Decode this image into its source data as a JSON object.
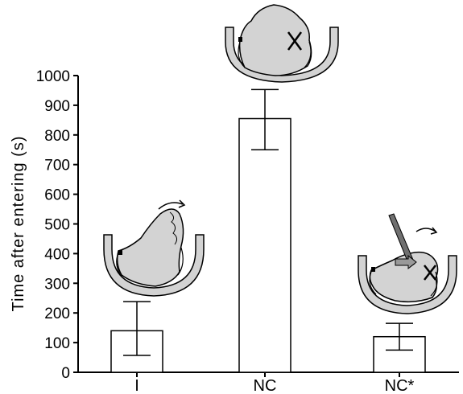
{
  "chart_data": {
    "type": "bar",
    "categories": [
      "I",
      "NC",
      "NC*"
    ],
    "values": [
      140,
      855,
      120
    ],
    "error_upper": [
      238,
      953,
      165
    ],
    "error_lower": [
      57,
      750,
      75
    ],
    "ylabel": "Time after entering (s)",
    "xlabel": "",
    "ylim": [
      0,
      1000
    ],
    "yticks": [
      "0",
      "100",
      "200",
      "300",
      "400",
      "500",
      "600",
      "700",
      "800",
      "900",
      "1000"
    ],
    "grid": false,
    "bar_fill": "#ffffff",
    "bar_stroke": "#000000",
    "specimen_fill": "#d3d3d3",
    "specimen_stroke": "#000000",
    "probe_color": "#707070",
    "illustrations": [
      {
        "category": "I",
        "icon": "specimen-with-turn-arrow-icon"
      },
      {
        "category": "NC",
        "icon": "specimen-with-x-mark-icon"
      },
      {
        "category": "NC*",
        "icon": "specimen-with-probe-and-x-mark-icon"
      }
    ]
  }
}
